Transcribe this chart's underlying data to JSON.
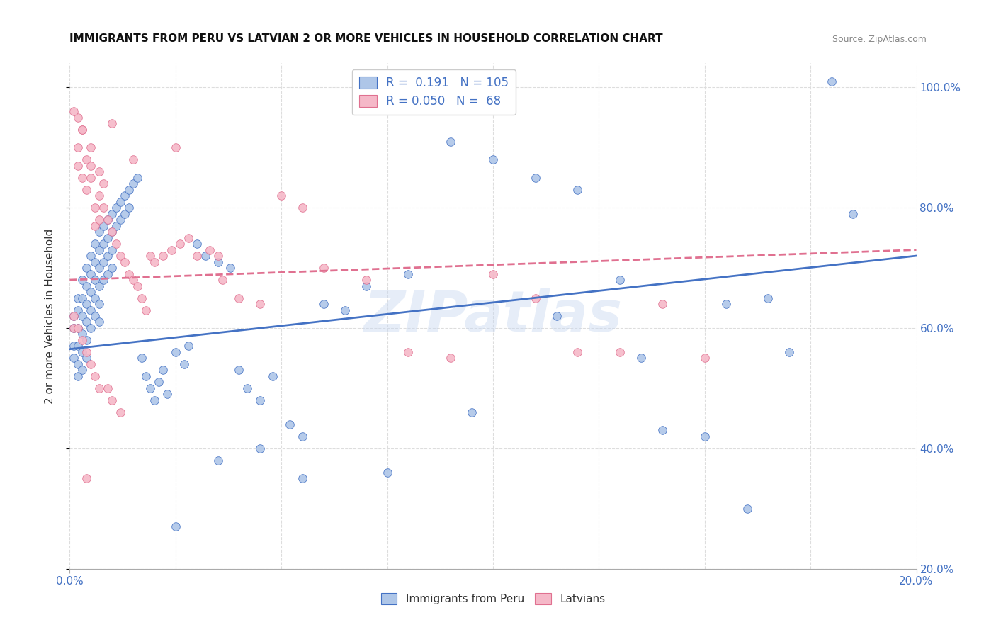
{
  "title": "IMMIGRANTS FROM PERU VS LATVIAN 2 OR MORE VEHICLES IN HOUSEHOLD CORRELATION CHART",
  "source": "Source: ZipAtlas.com",
  "ylabel": "2 or more Vehicles in Household",
  "legend_blue": {
    "R": "0.191",
    "N": "105",
    "label": "Immigrants from Peru"
  },
  "legend_pink": {
    "R": "0.050",
    "N": "68",
    "label": "Latvians"
  },
  "blue_color": "#aec6e8",
  "pink_color": "#f5b8c8",
  "trendline_blue": "#4472c4",
  "trendline_pink": "#e07090",
  "background_color": "#ffffff",
  "watermark": "ZIPatlas",
  "xlim": [
    0.0,
    0.2
  ],
  "ylim": [
    0.2,
    1.04
  ],
  "x_ticks_show": [
    0.0,
    0.2
  ],
  "y_ticks": [
    0.2,
    0.4,
    0.6,
    0.8,
    1.0
  ],
  "blue_R": 0.191,
  "pink_R": 0.05,
  "blue_scatter_x": [
    0.001,
    0.001,
    0.001,
    0.001,
    0.002,
    0.002,
    0.002,
    0.002,
    0.002,
    0.002,
    0.003,
    0.003,
    0.003,
    0.003,
    0.003,
    0.003,
    0.004,
    0.004,
    0.004,
    0.004,
    0.004,
    0.004,
    0.005,
    0.005,
    0.005,
    0.005,
    0.005,
    0.006,
    0.006,
    0.006,
    0.006,
    0.006,
    0.007,
    0.007,
    0.007,
    0.007,
    0.007,
    0.007,
    0.008,
    0.008,
    0.008,
    0.008,
    0.009,
    0.009,
    0.009,
    0.009,
    0.01,
    0.01,
    0.01,
    0.01,
    0.011,
    0.011,
    0.012,
    0.012,
    0.013,
    0.013,
    0.014,
    0.014,
    0.015,
    0.016,
    0.017,
    0.018,
    0.019,
    0.02,
    0.021,
    0.022,
    0.023,
    0.025,
    0.027,
    0.028,
    0.03,
    0.032,
    0.035,
    0.038,
    0.04,
    0.042,
    0.045,
    0.048,
    0.052,
    0.055,
    0.06,
    0.065,
    0.07,
    0.08,
    0.09,
    0.1,
    0.11,
    0.12,
    0.13,
    0.14,
    0.15,
    0.16,
    0.17,
    0.18,
    0.185,
    0.165,
    0.155,
    0.135,
    0.115,
    0.095,
    0.075,
    0.055,
    0.045,
    0.035,
    0.025
  ],
  "blue_scatter_y": [
    0.62,
    0.6,
    0.57,
    0.55,
    0.65,
    0.63,
    0.6,
    0.57,
    0.54,
    0.52,
    0.68,
    0.65,
    0.62,
    0.59,
    0.56,
    0.53,
    0.7,
    0.67,
    0.64,
    0.61,
    0.58,
    0.55,
    0.72,
    0.69,
    0.66,
    0.63,
    0.6,
    0.74,
    0.71,
    0.68,
    0.65,
    0.62,
    0.76,
    0.73,
    0.7,
    0.67,
    0.64,
    0.61,
    0.77,
    0.74,
    0.71,
    0.68,
    0.78,
    0.75,
    0.72,
    0.69,
    0.79,
    0.76,
    0.73,
    0.7,
    0.8,
    0.77,
    0.81,
    0.78,
    0.82,
    0.79,
    0.83,
    0.8,
    0.84,
    0.85,
    0.55,
    0.52,
    0.5,
    0.48,
    0.51,
    0.53,
    0.49,
    0.56,
    0.54,
    0.57,
    0.74,
    0.72,
    0.71,
    0.7,
    0.53,
    0.5,
    0.48,
    0.52,
    0.44,
    0.42,
    0.64,
    0.63,
    0.67,
    0.69,
    0.91,
    0.88,
    0.85,
    0.83,
    0.68,
    0.43,
    0.42,
    0.3,
    0.56,
    1.01,
    0.79,
    0.65,
    0.64,
    0.55,
    0.62,
    0.46,
    0.36,
    0.35,
    0.4,
    0.38,
    0.27
  ],
  "pink_scatter_x": [
    0.001,
    0.001,
    0.002,
    0.002,
    0.002,
    0.003,
    0.003,
    0.003,
    0.004,
    0.004,
    0.004,
    0.005,
    0.005,
    0.005,
    0.006,
    0.006,
    0.006,
    0.007,
    0.007,
    0.007,
    0.008,
    0.008,
    0.009,
    0.009,
    0.01,
    0.01,
    0.011,
    0.012,
    0.012,
    0.013,
    0.014,
    0.015,
    0.016,
    0.017,
    0.018,
    0.019,
    0.02,
    0.022,
    0.024,
    0.026,
    0.028,
    0.03,
    0.033,
    0.036,
    0.04,
    0.045,
    0.05,
    0.06,
    0.07,
    0.08,
    0.09,
    0.1,
    0.11,
    0.12,
    0.13,
    0.14,
    0.15,
    0.055,
    0.035,
    0.025,
    0.015,
    0.01,
    0.007,
    0.005,
    0.004,
    0.003,
    0.002,
    0.001
  ],
  "pink_scatter_y": [
    0.62,
    0.6,
    0.9,
    0.87,
    0.6,
    0.93,
    0.85,
    0.58,
    0.88,
    0.83,
    0.56,
    0.9,
    0.85,
    0.54,
    0.8,
    0.77,
    0.52,
    0.82,
    0.78,
    0.5,
    0.84,
    0.8,
    0.78,
    0.5,
    0.76,
    0.48,
    0.74,
    0.72,
    0.46,
    0.71,
    0.69,
    0.68,
    0.67,
    0.65,
    0.63,
    0.72,
    0.71,
    0.72,
    0.73,
    0.74,
    0.75,
    0.72,
    0.73,
    0.68,
    0.65,
    0.64,
    0.82,
    0.7,
    0.68,
    0.56,
    0.55,
    0.69,
    0.65,
    0.56,
    0.56,
    0.64,
    0.55,
    0.8,
    0.72,
    0.9,
    0.88,
    0.94,
    0.86,
    0.87,
    0.35,
    0.93,
    0.95,
    0.96
  ]
}
